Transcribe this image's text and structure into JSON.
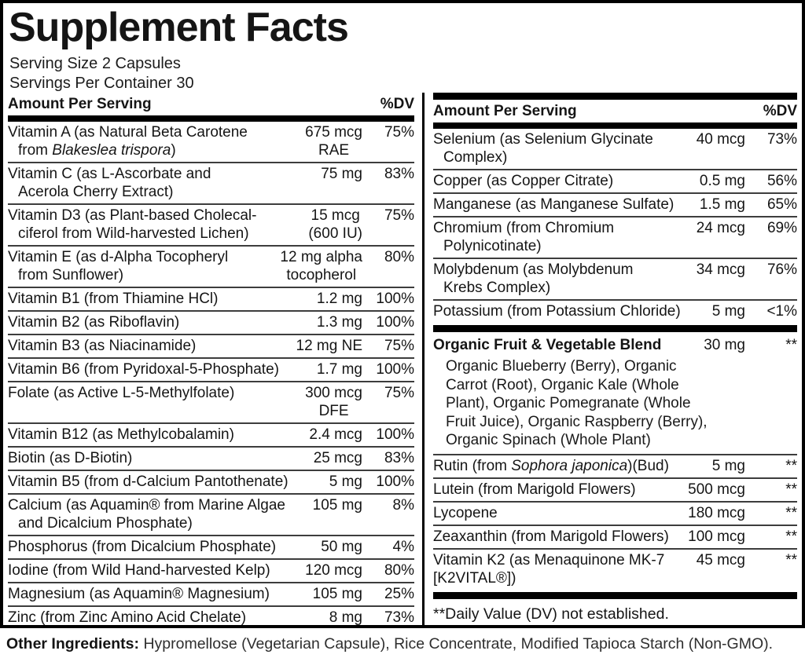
{
  "header": {
    "title": "Supplement Facts",
    "serving_size": "Serving Size 2 Capsules",
    "servings_per_container": "Servings Per Container 30"
  },
  "columns_header": {
    "amount_label": "Amount Per Serving",
    "dv_label": "%DV"
  },
  "colors": {
    "bar": "#000000",
    "separator": "#3d3d3d",
    "text": "#151515"
  },
  "left": {
    "rows": [
      {
        "name_pre": "Vitamin A (as Natural Beta Carotene\nfrom ",
        "name_italic": "Blakeslea trispora",
        "name_post": ")",
        "amount": "675 mcg\nRAE",
        "dv": "75%"
      },
      {
        "name": "Vitamin C (as L-Ascorbate and\nAcerola Cherry Extract)",
        "amount": "75 mg",
        "dv": "83%"
      },
      {
        "name": "Vitamin D3 (as Plant-based Cholecal-\nciferol from Wild-harvested Lichen)",
        "amount": "15 mcg\n(600 IU)",
        "dv": "75%"
      },
      {
        "name": "Vitamin E (as d-Alpha Tocopheryl\nfrom Sunflower)",
        "amount": "12 mg alpha\ntocopherol",
        "dv": "80%"
      },
      {
        "name": "Vitamin B1 (from Thiamine HCl)",
        "amount": "1.2 mg",
        "dv": "100%"
      },
      {
        "name": "Vitamin B2 (as Riboflavin)",
        "amount": "1.3 mg",
        "dv": "100%"
      },
      {
        "name": "Vitamin B3 (as Niacinamide)",
        "amount": "12 mg NE",
        "dv": "75%"
      },
      {
        "name": "Vitamin B6 (from Pyridoxal-5-Phosphate)",
        "amount": "1.7 mg",
        "dv": "100%"
      },
      {
        "name": "Folate (as Active L-5-Methylfolate)",
        "amount": "300 mcg\nDFE",
        "dv": "75%"
      },
      {
        "name": "Vitamin B12 (as Methylcobalamin)",
        "amount": "2.4 mcg",
        "dv": "100%"
      },
      {
        "name": "Biotin (as D-Biotin)",
        "amount": "25 mcg",
        "dv": "83%"
      },
      {
        "name": "Vitamin B5 (from d-Calcium Pantothenate)",
        "amount": "5 mg",
        "dv": "100%"
      },
      {
        "name": "Calcium (as Aquamin® from Marine Algae\nand Dicalcium Phosphate)",
        "amount": "105 mg",
        "dv": "8%"
      },
      {
        "name": "Phosphorus (from Dicalcium Phosphate)",
        "amount": "50 mg",
        "dv": "4%"
      },
      {
        "name": "Iodine (from Wild Hand-harvested Kelp)",
        "amount": "120 mcg",
        "dv": "80%"
      },
      {
        "name": "Magnesium (as Aquamin® Magnesium)",
        "amount": "105 mg",
        "dv": "25%"
      },
      {
        "name": "Zinc (from Zinc Amino Acid Chelate)",
        "amount": "8 mg",
        "dv": "73%"
      }
    ]
  },
  "right": {
    "rows": [
      {
        "name": "Selenium (as Selenium Glycinate\nComplex)",
        "amount": "40 mcg",
        "dv": "73%"
      },
      {
        "name": "Copper (as Copper Citrate)",
        "amount": "0.5 mg",
        "dv": "56%"
      },
      {
        "name": "Manganese (as Manganese Sulfate)",
        "amount": "1.5 mg",
        "dv": "65%"
      },
      {
        "name": "Chromium (from Chromium\nPolynicotinate)",
        "amount": "24 mcg",
        "dv": "69%"
      },
      {
        "name": "Molybdenum (as Molybdenum\nKrebs Complex)",
        "amount": "34 mcg",
        "dv": "76%"
      },
      {
        "name": "Potassium (from Potassium Chloride)",
        "amount": "5 mg",
        "dv": "<1%"
      }
    ],
    "blend": {
      "name": "Organic Fruit & Vegetable Blend",
      "amount": "30 mg",
      "dv": "**",
      "ingredients": "Organic Blueberry (Berry), Organic\nCarrot (Root), Organic Kale (Whole\nPlant), Organic Pomegranate (Whole\nFruit Juice), Organic Raspberry (Berry),\nOrganic Spinach (Whole Plant)"
    },
    "rows2": [
      {
        "name_pre": "Rutin (from ",
        "name_italic": "Sophora japonica",
        "name_post": ")(Bud)",
        "amount": "5 mg",
        "dv": "**"
      },
      {
        "name": "Lutein (from Marigold Flowers)",
        "amount": "500 mcg",
        "dv": "**"
      },
      {
        "name": "Lycopene",
        "amount": "180 mcg",
        "dv": "**"
      },
      {
        "name": "Zeaxanthin (from Marigold Flowers)",
        "amount": "100 mcg",
        "dv": "**"
      },
      {
        "name": "Vitamin K2 (as Menaquinone MK-7\n[K2VITAL®])",
        "amount": "45 mcg",
        "dv": "**"
      }
    ],
    "footnote": "**Daily Value (DV) not established."
  },
  "footer": {
    "label": "Other Ingredients:",
    "text": " Hypromellose (Vegetarian Capsule), Rice Concentrate, Modified Tapioca Starch (Non-GMO)."
  }
}
